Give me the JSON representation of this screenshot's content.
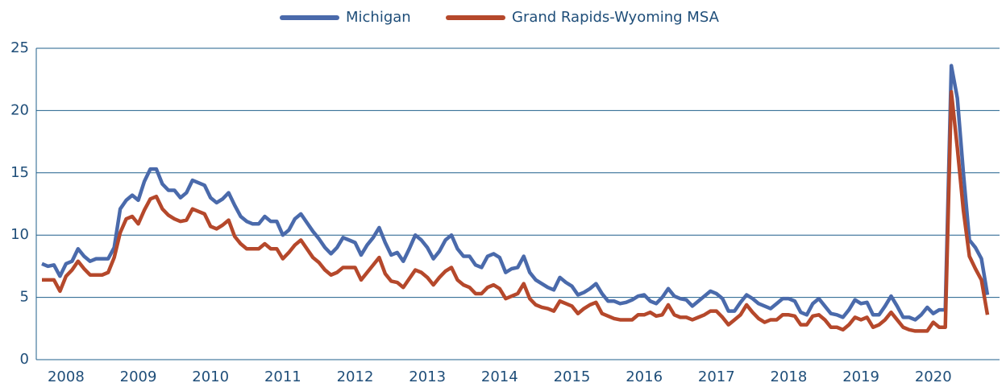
{
  "chart_data": {
    "type": "line",
    "categories": [
      null,
      null,
      null,
      null,
      "2008",
      null,
      null,
      null,
      null,
      null,
      null,
      null,
      null,
      null,
      null,
      null,
      "2009",
      null,
      null,
      null,
      null,
      null,
      null,
      null,
      null,
      null,
      null,
      null,
      "2010",
      null,
      null,
      null,
      null,
      null,
      null,
      null,
      null,
      null,
      null,
      null,
      "2011",
      null,
      null,
      null,
      null,
      null,
      null,
      null,
      null,
      null,
      null,
      null,
      "2012",
      null,
      null,
      null,
      null,
      null,
      null,
      null,
      null,
      null,
      null,
      null,
      "2013",
      null,
      null,
      null,
      null,
      null,
      null,
      null,
      null,
      null,
      null,
      null,
      "2014",
      null,
      null,
      null,
      null,
      null,
      null,
      null,
      null,
      null,
      null,
      null,
      "2015",
      null,
      null,
      null,
      null,
      null,
      null,
      null,
      null,
      null,
      null,
      null,
      "2016",
      null,
      null,
      null,
      null,
      null,
      null,
      null,
      null,
      null,
      null,
      null,
      "2017",
      null,
      null,
      null,
      null,
      null,
      null,
      null,
      null,
      null,
      null,
      null,
      "2018",
      null,
      null,
      null,
      null,
      null,
      null,
      null,
      null,
      null,
      null,
      null,
      "2019",
      null,
      null,
      null,
      null,
      null,
      null,
      null,
      null,
      null,
      null,
      null,
      "2020",
      null,
      null,
      null,
      null,
      null,
      null,
      null,
      null,
      null
    ],
    "series": [
      {
        "name": "Michigan",
        "color": "#4a6aab",
        "values": [
          7.7,
          7.5,
          7.6,
          6.7,
          7.7,
          7.9,
          8.9,
          8.3,
          7.9,
          8.1,
          8.1,
          8.1,
          9.0,
          12.1,
          12.8,
          13.2,
          12.8,
          14.3,
          15.3,
          15.3,
          14.1,
          13.6,
          13.6,
          13.0,
          13.4,
          14.4,
          14.2,
          14.0,
          13.0,
          12.6,
          12.9,
          13.4,
          12.4,
          11.5,
          11.1,
          10.9,
          10.9,
          11.5,
          11.1,
          11.1,
          10.0,
          10.4,
          11.3,
          11.7,
          11.0,
          10.3,
          9.7,
          9.0,
          8.5,
          9.0,
          9.8,
          9.6,
          9.4,
          8.4,
          9.2,
          9.8,
          10.6,
          9.4,
          8.4,
          8.6,
          7.9,
          8.9,
          10.0,
          9.6,
          9.0,
          8.1,
          8.7,
          9.6,
          10.0,
          8.9,
          8.3,
          8.3,
          7.6,
          7.4,
          8.3,
          8.5,
          8.2,
          7.0,
          7.3,
          7.4,
          8.3,
          7.0,
          6.4,
          6.1,
          5.8,
          5.6,
          6.6,
          6.2,
          5.9,
          5.2,
          5.4,
          5.7,
          6.1,
          5.3,
          4.7,
          4.7,
          4.5,
          4.6,
          4.8,
          5.1,
          5.2,
          4.7,
          4.5,
          5.0,
          5.7,
          5.1,
          4.9,
          4.8,
          4.3,
          4.7,
          5.1,
          5.5,
          5.3,
          4.9,
          3.9,
          3.9,
          4.6,
          5.2,
          4.9,
          4.5,
          4.3,
          4.1,
          4.5,
          4.9,
          4.9,
          4.7,
          3.8,
          3.6,
          4.5,
          4.9,
          4.3,
          3.7,
          3.6,
          3.4,
          4.0,
          4.8,
          4.5,
          4.6,
          3.6,
          3.6,
          4.3,
          5.1,
          4.3,
          3.4,
          3.4,
          3.2,
          3.6,
          4.2,
          3.7,
          4.0,
          4.0,
          23.6,
          21.0,
          15.0,
          9.6,
          9.0,
          8.1,
          5.2
        ]
      },
      {
        "name": "Grand Rapids-Wyoming MSA",
        "color": "#b5482b",
        "values": [
          6.4,
          6.4,
          6.4,
          5.5,
          6.7,
          7.2,
          7.9,
          7.3,
          6.8,
          6.8,
          6.8,
          7.0,
          8.2,
          10.2,
          11.3,
          11.5,
          10.9,
          12.0,
          12.9,
          13.1,
          12.1,
          11.6,
          11.3,
          11.1,
          11.2,
          12.1,
          11.9,
          11.7,
          10.7,
          10.5,
          10.8,
          11.2,
          9.9,
          9.3,
          8.9,
          8.9,
          8.9,
          9.3,
          8.9,
          8.9,
          8.1,
          8.6,
          9.2,
          9.6,
          8.9,
          8.2,
          7.8,
          7.2,
          6.8,
          7.0,
          7.4,
          7.4,
          7.4,
          6.4,
          7.0,
          7.6,
          8.2,
          6.9,
          6.3,
          6.2,
          5.8,
          6.5,
          7.2,
          7.0,
          6.6,
          6.0,
          6.6,
          7.1,
          7.4,
          6.4,
          6.0,
          5.8,
          5.3,
          5.3,
          5.8,
          6.0,
          5.7,
          4.9,
          5.1,
          5.3,
          6.1,
          4.9,
          4.4,
          4.2,
          4.1,
          3.9,
          4.7,
          4.5,
          4.3,
          3.7,
          4.1,
          4.4,
          4.6,
          3.7,
          3.5,
          3.3,
          3.2,
          3.2,
          3.2,
          3.6,
          3.6,
          3.8,
          3.5,
          3.6,
          4.4,
          3.6,
          3.4,
          3.4,
          3.2,
          3.4,
          3.6,
          3.9,
          3.9,
          3.4,
          2.8,
          3.2,
          3.6,
          4.4,
          3.8,
          3.3,
          3.0,
          3.2,
          3.2,
          3.6,
          3.6,
          3.5,
          2.8,
          2.8,
          3.5,
          3.6,
          3.2,
          2.6,
          2.6,
          2.4,
          2.8,
          3.4,
          3.2,
          3.4,
          2.6,
          2.8,
          3.2,
          3.8,
          3.2,
          2.6,
          2.4,
          2.3,
          2.3,
          2.3,
          3.0,
          2.6,
          2.6,
          21.5,
          17.0,
          12.0,
          8.3,
          7.3,
          6.4,
          3.6
        ]
      }
    ],
    "ylim": [
      0,
      25
    ],
    "yticks": [
      0,
      5,
      10,
      15,
      20,
      25
    ],
    "grid": true,
    "legend": "top"
  }
}
